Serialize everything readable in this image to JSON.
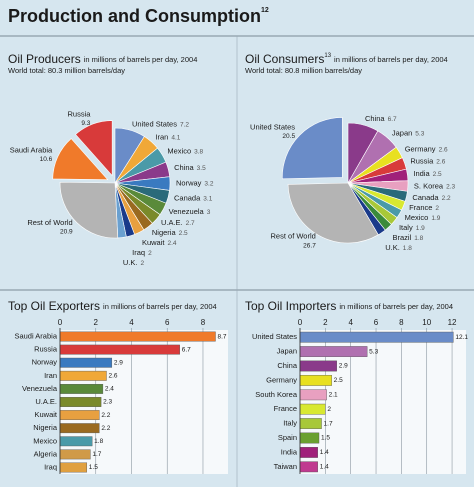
{
  "title": "Production and Consumption",
  "title_note": "12",
  "chart_data": [
    {
      "type": "pie",
      "title": "Oil Producers",
      "subtitle": "in millions of barrels per day, 2004",
      "total_note": "World total: 80.3 million barrels/day",
      "categories": [
        "United States",
        "Iran",
        "Mexico",
        "China",
        "Norway",
        "Canada",
        "Venezuela",
        "U.A.E.",
        "Nigeria",
        "Kuwait",
        "Iraq",
        "U.K.",
        "Rest of World",
        "Saudi Arabia",
        "Russia"
      ],
      "values": [
        7.2,
        4.1,
        3.8,
        3.5,
        3.2,
        3.1,
        3.0,
        2.7,
        2.5,
        2.4,
        2.0,
        2.0,
        20.9,
        10.6,
        9.3
      ],
      "colors": [
        "#6a8cc8",
        "#f0a838",
        "#4a9aa8",
        "#8a3a8a",
        "#3a7ac0",
        "#2a6a7a",
        "#5a8a3a",
        "#7a8a2a",
        "#9a6a20",
        "#e8a040",
        "#1a3a8a",
        "#6aa0d0",
        "#b4b4b4",
        "#f07a2a",
        "#d83a3a"
      ],
      "explode": [
        false,
        false,
        false,
        false,
        false,
        false,
        false,
        false,
        false,
        false,
        false,
        false,
        false,
        true,
        true
      ]
    },
    {
      "type": "pie",
      "title": "Oil Consumers",
      "title_note": "13",
      "subtitle": "in millions of barrels per day, 2004",
      "total_note": "World total: 80.8 million barrels/day",
      "categories": [
        "China",
        "Japan",
        "Germany",
        "Russia",
        "India",
        "S. Korea",
        "Canada",
        "France",
        "Mexico",
        "Italy",
        "Brazil",
        "U.K.",
        "Rest of World",
        "United States"
      ],
      "values": [
        6.7,
        5.3,
        2.6,
        2.6,
        2.5,
        2.3,
        2.2,
        2.0,
        1.9,
        1.9,
        1.8,
        1.8,
        26.7,
        20.5
      ],
      "colors": [
        "#8a3a8a",
        "#b070b0",
        "#e8e020",
        "#d83a3a",
        "#a0207a",
        "#e8a0c0",
        "#2a6a7a",
        "#d8e830",
        "#4a9aa8",
        "#a8c838",
        "#3a8a3a",
        "#1a3a8a",
        "#b4b4b4",
        "#6a8cc8"
      ],
      "explode": [
        false,
        false,
        false,
        false,
        false,
        false,
        false,
        false,
        false,
        false,
        false,
        false,
        false,
        true
      ]
    },
    {
      "type": "hbar",
      "title": "Top Oil Exporters",
      "subtitle": "in millions of barrels per day, 2004",
      "categories": [
        "Saudi Arabia",
        "Russia",
        "Norway",
        "Iran",
        "Venezuela",
        "U.A.E.",
        "Kuwait",
        "Nigeria",
        "Mexico",
        "Algeria",
        "Iraq"
      ],
      "values": [
        8.7,
        6.7,
        2.9,
        2.6,
        2.4,
        2.3,
        2.2,
        2.2,
        1.8,
        1.7,
        1.5
      ],
      "colors": [
        "#f07a2a",
        "#d83a3a",
        "#3a7ac0",
        "#f0a838",
        "#5a8a3a",
        "#7a8a2a",
        "#e8a040",
        "#9a6a20",
        "#4a9aa8",
        "#d09a48",
        "#e0a040"
      ],
      "xlim": [
        0,
        9.4
      ],
      "xticks": [
        0,
        2,
        4,
        6,
        8
      ],
      "grid": true
    },
    {
      "type": "hbar",
      "title": "Top Oil Importers",
      "subtitle": "in millions of barrels per day, 2004",
      "categories": [
        "United States",
        "Japan",
        "China",
        "Germany",
        "South Korea",
        "France",
        "Italy",
        "Spain",
        "India",
        "Taiwan"
      ],
      "values": [
        12.1,
        5.3,
        2.9,
        2.5,
        2.1,
        2.0,
        1.7,
        1.5,
        1.4,
        1.4
      ],
      "colors": [
        "#6a8cc8",
        "#b070b0",
        "#8a3a8a",
        "#e8e020",
        "#e8a0c0",
        "#d8e830",
        "#a8c838",
        "#6aa030",
        "#a0207a",
        "#c03a90"
      ],
      "xlim": [
        0,
        13.1
      ],
      "xticks": [
        0,
        2,
        4,
        6,
        8,
        10,
        12
      ],
      "grid": true
    }
  ]
}
